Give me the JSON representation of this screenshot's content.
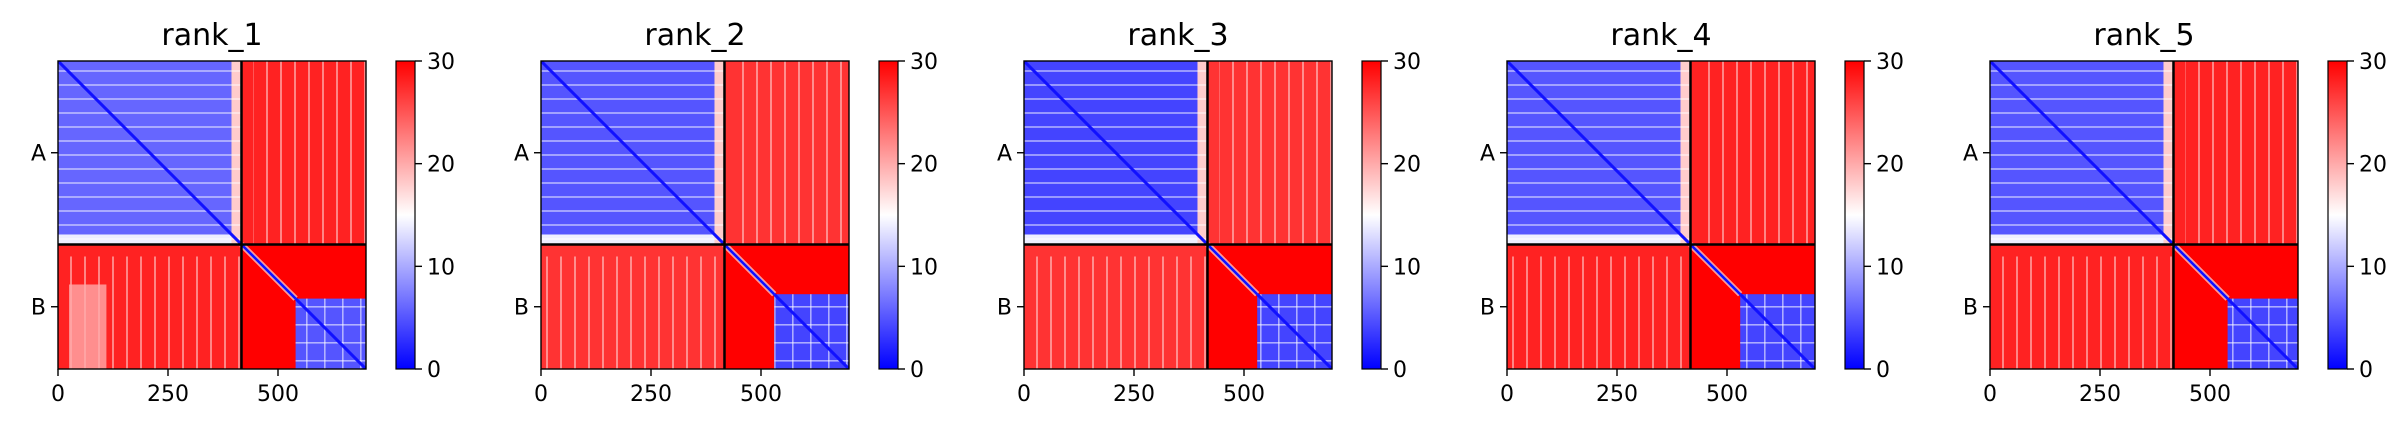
{
  "chart_data": {
    "type": "heatmap",
    "color_scale": {
      "min": 0,
      "max": 30,
      "ticks": [
        "0",
        "10",
        "20",
        "30"
      ],
      "colors": [
        "#0000ff",
        "#ffffff",
        "#ff0000"
      ]
    },
    "x_range": [
      0,
      700
    ],
    "x_ticks": [
      {
        "value": 0,
        "label": "0"
      },
      {
        "value": 250,
        "label": "250"
      },
      {
        "value": 500,
        "label": "500"
      }
    ],
    "chain_boundary": 417,
    "chains": [
      {
        "label": "A",
        "start": 0,
        "end": 417
      },
      {
        "label": "B",
        "start": 417,
        "end": 700
      }
    ],
    "panels": [
      {
        "title": "rank_1",
        "intra_a": 6,
        "intra_b": 5,
        "inter": 28,
        "b_domain_start": 540,
        "ba_light_band": true
      },
      {
        "title": "rank_2",
        "intra_a": 5,
        "intra_b": 4,
        "inter": 27,
        "b_domain_start": 530,
        "ba_light_band": false
      },
      {
        "title": "rank_3",
        "intra_a": 4,
        "intra_b": 4,
        "inter": 27,
        "b_domain_start": 530,
        "ba_light_band": false
      },
      {
        "title": "rank_4",
        "intra_a": 5,
        "intra_b": 4,
        "inter": 28,
        "b_domain_start": 530,
        "ba_light_band": false
      },
      {
        "title": "rank_5",
        "intra_a": 5,
        "intra_b": 4,
        "inter": 28,
        "b_domain_start": 540,
        "ba_light_band": false
      }
    ]
  }
}
